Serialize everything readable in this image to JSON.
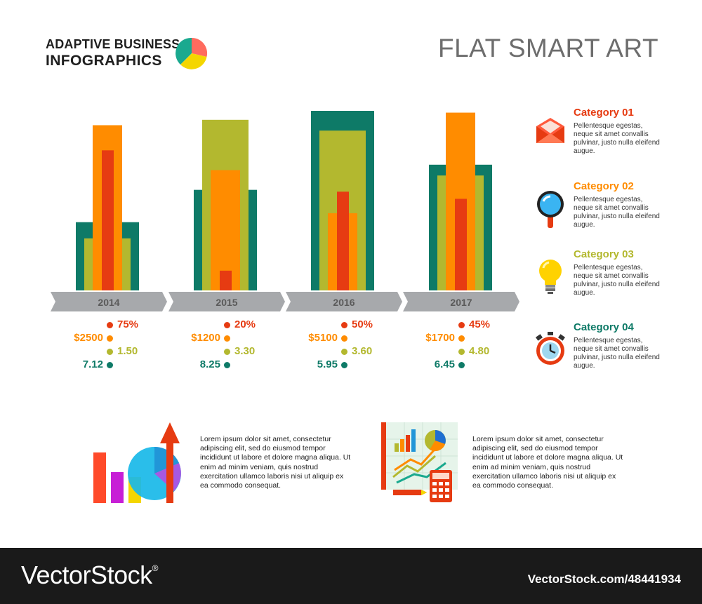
{
  "header": {
    "logo_line1": "ADAPTIVE BUSINESS",
    "logo_line2": "INFOGRAPHICS",
    "title": "FLAT SMART ART"
  },
  "colors": {
    "teal": "#0e7a67",
    "olive": "#b3b82f",
    "orange": "#ff8c00",
    "red": "#e63b12",
    "grey_arrow": "#a7a9ac"
  },
  "chart_data": {
    "type": "bar",
    "categories": [
      "2014",
      "2015",
      "2016",
      "2017"
    ],
    "series": [
      {
        "key": "teal",
        "color": "#0e7a67",
        "values": [
          7.12,
          8.25,
          5.95,
          6.45
        ]
      },
      {
        "key": "olive",
        "color": "#b3b82f",
        "values": [
          1.5,
          3.3,
          3.6,
          4.8
        ]
      },
      {
        "key": "orange",
        "color": "#ff8c00",
        "values": [
          2500,
          1200,
          5100,
          1700
        ]
      },
      {
        "key": "red",
        "color": "#e63b12",
        "values": [
          75,
          20,
          50,
          45
        ]
      }
    ],
    "labels": [
      {
        "red": "75%",
        "orange": "$2500",
        "olive": "1.50",
        "teal": "7.12"
      },
      {
        "red": "20%",
        "orange": "$1200",
        "olive": "3.30",
        "teal": "8.25"
      },
      {
        "red": "50%",
        "orange": "$5100",
        "olive": "3.60",
        "teal": "5.95"
      },
      {
        "red": "45%",
        "orange": "$1700",
        "olive": "4.80",
        "teal": "6.45"
      }
    ],
    "bar_level": [
      {
        "teal": 0.38,
        "olive": 0.29,
        "orange": 0.92,
        "red": 0.78
      },
      {
        "teal": 0.56,
        "olive": 0.95,
        "orange": 0.67,
        "red": 0.11
      },
      {
        "teal": 1.0,
        "olive": 0.89,
        "orange": 0.43,
        "red": 0.55
      },
      {
        "teal": 0.7,
        "olive": 0.64,
        "orange": 0.99,
        "red": 0.51
      }
    ],
    "title": "",
    "xlabel": "",
    "ylabel": ""
  },
  "categories": [
    {
      "title": "Category 01",
      "color": "#e63b12",
      "icon": "envelope-icon",
      "desc": "Pellentesque egestas, neque sit amet convallis pulvinar, justo nulla eleifend augue."
    },
    {
      "title": "Category 02",
      "color": "#ff8c00",
      "icon": "magnifier-icon",
      "desc": "Pellentesque egestas, neque sit amet convallis pulvinar, justo nulla eleifend augue."
    },
    {
      "title": "Category 03",
      "color": "#b3b82f",
      "icon": "lightbulb-icon",
      "desc": "Pellentesque egestas, neque sit amet convallis pulvinar, justo nulla eleifend augue."
    },
    {
      "title": "Category 04",
      "color": "#0e7a67",
      "icon": "alarm-clock-icon",
      "desc": "Pellentesque egestas, neque sit amet convallis pulvinar, justo nulla eleifend augue."
    }
  ],
  "promos": [
    {
      "icon": "growth-chart-icon",
      "text": "Lorem ipsum dolor sit amet, consectetur adipiscing elit, sed do eiusmod tempor incididunt ut labore et dolore magna aliqua. Ut enim ad minim veniam, quis nostrud exercitation ullamco laboris nisi ut aliquip ex ea commodo consequat."
    },
    {
      "icon": "analytics-board-icon",
      "text": "Lorem ipsum dolor sit amet, consectetur adipiscing elit, sed do eiusmod tempor incididunt ut labore et dolore magna aliqua. Ut enim ad minim veniam, quis nostrud exercitation ullamco laboris nisi ut aliquip ex ea commodo consequat."
    }
  ],
  "footer": {
    "logo": "VectorStock",
    "reg": "®",
    "image_id": "VectorStock.com/48441934"
  }
}
